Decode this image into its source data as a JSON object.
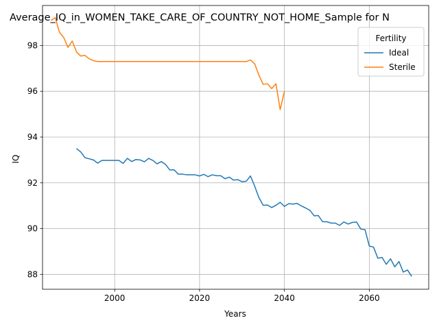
{
  "chart_data": {
    "type": "line",
    "title": "Average_IQ_in_WOMEN_TAKE_CARE_OF_COUNTRY_NOT_HOME_Sample for N",
    "xlabel": "Years",
    "ylabel": "IQ",
    "xlim": [
      1983,
      2074
    ],
    "ylim": [
      87.35,
      99.75
    ],
    "xticks": [
      2000,
      2020,
      2040,
      2060
    ],
    "yticks": [
      88,
      90,
      92,
      94,
      96,
      98
    ],
    "grid": true,
    "legend": {
      "title": "Fertility",
      "placement": "top-right"
    },
    "series": [
      {
        "name": "Ideal",
        "color": "#1f77b4",
        "points": [
          [
            1991,
            93.5
          ],
          [
            1992,
            93.35
          ],
          [
            1993,
            93.1
          ],
          [
            1994,
            93.05
          ],
          [
            1995,
            93.0
          ],
          [
            1996,
            92.86
          ],
          [
            1997,
            92.98
          ],
          [
            1998,
            92.98
          ],
          [
            1999,
            92.98
          ],
          [
            2000,
            92.98
          ],
          [
            2001,
            92.98
          ],
          [
            2002,
            92.85
          ],
          [
            2003,
            93.07
          ],
          [
            2004,
            92.93
          ],
          [
            2005,
            93.02
          ],
          [
            2006,
            93.0
          ],
          [
            2007,
            92.92
          ],
          [
            2008,
            93.07
          ],
          [
            2009,
            92.98
          ],
          [
            2010,
            92.83
          ],
          [
            2011,
            92.93
          ],
          [
            2012,
            92.8
          ],
          [
            2013,
            92.56
          ],
          [
            2014,
            92.57
          ],
          [
            2015,
            92.38
          ],
          [
            2016,
            92.38
          ],
          [
            2017,
            92.35
          ],
          [
            2018,
            92.35
          ],
          [
            2019,
            92.35
          ],
          [
            2020,
            92.3
          ],
          [
            2021,
            92.37
          ],
          [
            2022,
            92.27
          ],
          [
            2023,
            92.35
          ],
          [
            2024,
            92.31
          ],
          [
            2025,
            92.31
          ],
          [
            2026,
            92.18
          ],
          [
            2027,
            92.25
          ],
          [
            2028,
            92.12
          ],
          [
            2029,
            92.14
          ],
          [
            2030,
            92.05
          ],
          [
            2031,
            92.07
          ],
          [
            2032,
            92.3
          ],
          [
            2033,
            91.85
          ],
          [
            2034,
            91.35
          ],
          [
            2035,
            91.02
          ],
          [
            2036,
            91.03
          ],
          [
            2037,
            90.92
          ],
          [
            2038,
            91.02
          ],
          [
            2039,
            91.15
          ],
          [
            2040,
            90.97
          ],
          [
            2041,
            91.09
          ],
          [
            2042,
            91.07
          ],
          [
            2043,
            91.1
          ],
          [
            2044,
            90.99
          ],
          [
            2045,
            90.9
          ],
          [
            2046,
            90.8
          ],
          [
            2047,
            90.56
          ],
          [
            2048,
            90.57
          ],
          [
            2049,
            90.3
          ],
          [
            2050,
            90.3
          ],
          [
            2051,
            90.24
          ],
          [
            2052,
            90.24
          ],
          [
            2053,
            90.14
          ],
          [
            2054,
            90.29
          ],
          [
            2055,
            90.2
          ],
          [
            2056,
            90.27
          ],
          [
            2057,
            90.29
          ],
          [
            2058,
            89.98
          ],
          [
            2059,
            89.95
          ],
          [
            2060,
            89.24
          ],
          [
            2061,
            89.19
          ],
          [
            2062,
            88.71
          ],
          [
            2063,
            88.74
          ],
          [
            2064,
            88.44
          ],
          [
            2065,
            88.68
          ],
          [
            2066,
            88.33
          ],
          [
            2067,
            88.56
          ],
          [
            2068,
            88.1
          ],
          [
            2069,
            88.19
          ],
          [
            2070,
            87.91
          ]
        ]
      },
      {
        "name": "Sterile",
        "color": "#ff7f0e",
        "points": [
          [
            1985,
            99.1
          ],
          [
            1986,
            99.22
          ],
          [
            1987,
            98.57
          ],
          [
            1988,
            98.35
          ],
          [
            1989,
            97.92
          ],
          [
            1990,
            98.2
          ],
          [
            1991,
            97.72
          ],
          [
            1992,
            97.54
          ],
          [
            1993,
            97.57
          ],
          [
            1994,
            97.42
          ],
          [
            1995,
            97.34
          ],
          [
            1996,
            97.3
          ],
          [
            1997,
            97.3
          ],
          [
            1998,
            97.3
          ],
          [
            2000,
            97.3
          ],
          [
            2005,
            97.3
          ],
          [
            2010,
            97.3
          ],
          [
            2015,
            97.3
          ],
          [
            2020,
            97.3
          ],
          [
            2025,
            97.3
          ],
          [
            2030,
            97.3
          ],
          [
            2031,
            97.3
          ],
          [
            2032,
            97.37
          ],
          [
            2033,
            97.2
          ],
          [
            2034,
            96.7
          ],
          [
            2035,
            96.3
          ],
          [
            2036,
            96.33
          ],
          [
            2037,
            96.12
          ],
          [
            2038,
            96.33
          ],
          [
            2039,
            95.2
          ],
          [
            2040,
            96.0
          ]
        ]
      }
    ]
  }
}
